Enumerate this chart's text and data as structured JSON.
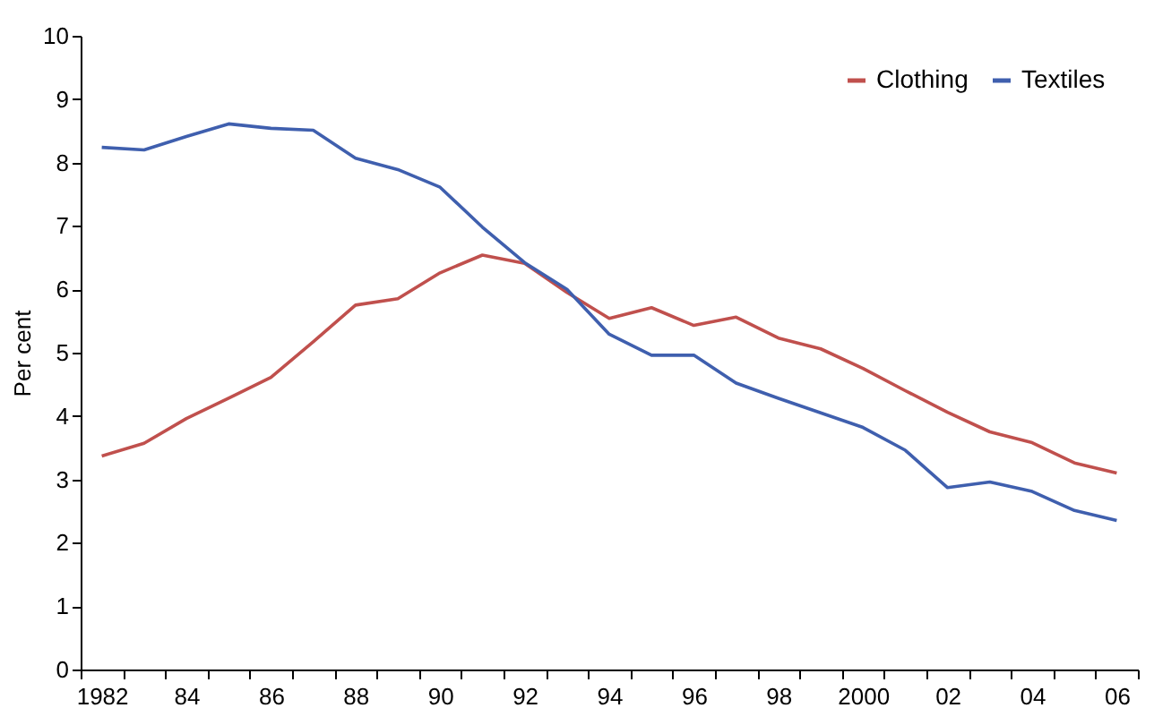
{
  "chart_data": {
    "type": "line",
    "ylabel": "Per cent",
    "categories": [
      "1982",
      null,
      "84",
      null,
      "86",
      null,
      "88",
      null,
      "90",
      null,
      "92",
      null,
      "94",
      null,
      "96",
      null,
      "98",
      null,
      "2000",
      null,
      "02",
      null,
      "04",
      null,
      "06"
    ],
    "ylim": [
      0,
      10
    ],
    "yticks": [
      0,
      1,
      2,
      3,
      4,
      5,
      6,
      7,
      8,
      9,
      10
    ],
    "legend": "top right",
    "series": [
      {
        "name": "Clothing",
        "color": "#c0504d",
        "values": [
          3.37,
          3.57,
          3.96,
          4.28,
          4.61,
          5.17,
          5.75,
          5.85,
          6.26,
          6.54,
          6.41,
          5.95,
          5.54,
          5.71,
          5.43,
          5.56,
          5.23,
          5.06,
          4.75,
          4.4,
          4.06,
          3.75,
          3.58,
          3.26,
          3.1
        ]
      },
      {
        "name": "Textiles",
        "color": "#3f5fae",
        "values": [
          8.24,
          8.2,
          8.41,
          8.61,
          8.54,
          8.51,
          8.07,
          7.89,
          7.61,
          6.98,
          6.42,
          6.0,
          5.29,
          4.96,
          4.96,
          4.52,
          4.28,
          4.05,
          3.82,
          3.46,
          2.87,
          2.96,
          2.81,
          2.51,
          2.35
        ]
      }
    ]
  }
}
